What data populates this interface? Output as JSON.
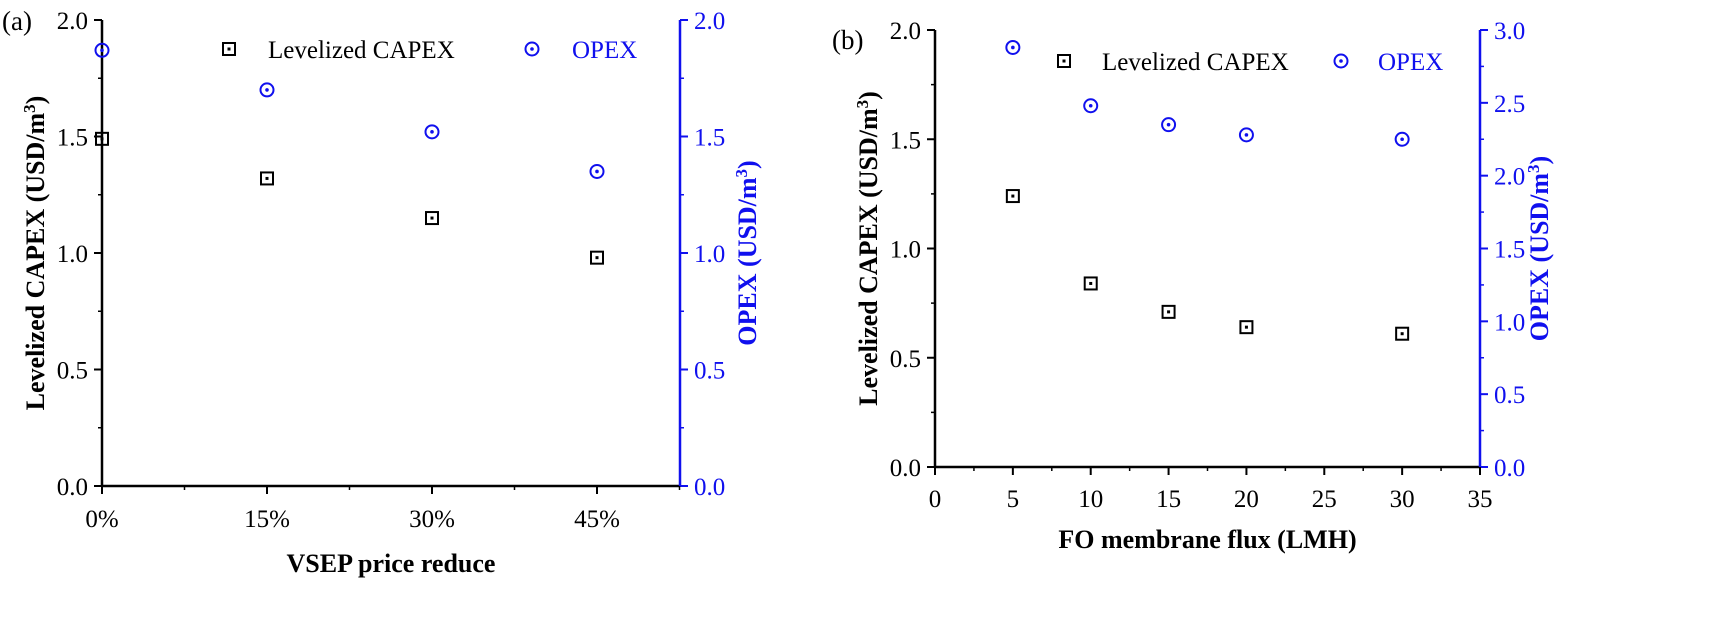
{
  "colors": {
    "capex": "#000000",
    "opex": "#1010ee"
  },
  "chart_data": [
    {
      "panel_label": "(a)",
      "type": "scatter",
      "categories": [
        "0%",
        "15%",
        "30%",
        "45%"
      ],
      "xlabel": "VSEP price reduce",
      "ylabel_left": "Levelized CAPEX (USD/m",
      "ylabel_right": "OPEX (USD/m",
      "ylabel_sup": "3",
      "ylabel_close": ")",
      "ylim_left": [
        0,
        2
      ],
      "ylim_right": [
        0,
        2
      ],
      "yticks_left": [
        "0.0",
        "0.5",
        "1.0",
        "1.5",
        "2.0"
      ],
      "yticks_right": [
        "0.0",
        "0.5",
        "1.0",
        "1.5",
        "2.0"
      ],
      "series": [
        {
          "name": "Levelized CAPEX",
          "axis": "left",
          "marker": "square",
          "values": [
            1.49,
            1.32,
            1.15,
            0.98
          ]
        },
        {
          "name": "OPEX",
          "axis": "right",
          "marker": "circle",
          "values": [
            1.87,
            1.7,
            1.52,
            1.35
          ]
        }
      ]
    },
    {
      "panel_label": "(b)",
      "type": "scatter",
      "xlabel": "FO membrane flux (LMH)",
      "xlim": [
        0,
        35
      ],
      "xticks": [
        "0",
        "5",
        "10",
        "15",
        "20",
        "25",
        "30",
        "35"
      ],
      "ylabel_left": "Levelized CAPEX (USD/m",
      "ylabel_right": "OPEX (USD/m",
      "ylabel_sup": "3",
      "ylabel_close": ")",
      "ylim_left": [
        0,
        2
      ],
      "ylim_right": [
        0,
        3
      ],
      "yticks_left": [
        "0.0",
        "0.5",
        "1.0",
        "1.5",
        "2.0"
      ],
      "yticks_right": [
        "0.0",
        "0.5",
        "1.0",
        "1.5",
        "2.0",
        "2.5",
        "3.0"
      ],
      "series": [
        {
          "name": "Levelized CAPEX",
          "axis": "left",
          "marker": "square",
          "x": [
            5,
            10,
            15,
            20,
            30
          ],
          "y": [
            1.24,
            0.84,
            0.71,
            0.64,
            0.61
          ]
        },
        {
          "name": "OPEX",
          "axis": "right",
          "marker": "circle",
          "x": [
            5,
            10,
            15,
            20,
            30
          ],
          "y": [
            2.88,
            2.48,
            2.35,
            2.28,
            2.25
          ]
        }
      ]
    }
  ]
}
